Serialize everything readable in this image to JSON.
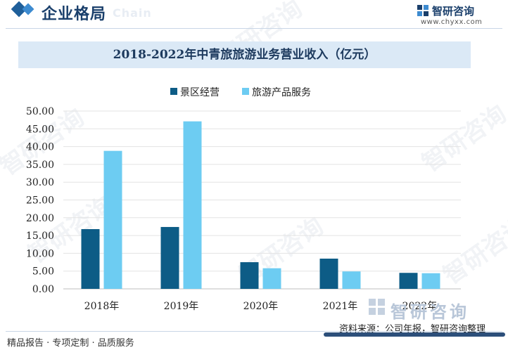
{
  "header": {
    "section_title": "企业格局",
    "ghost_text": "Chain",
    "brand_name": "智研咨询",
    "brand_url": "www.chyxx.com"
  },
  "chart_data": {
    "type": "bar",
    "title": "2018-2022年中青旅旅游业务营业收入（亿元）",
    "categories": [
      "2018年",
      "2019年",
      "2020年",
      "2021年",
      "2022年"
    ],
    "series": [
      {
        "name": "景区经营",
        "color": "#0d5c86",
        "values": [
          16.8,
          17.4,
          7.5,
          8.5,
          4.5
        ]
      },
      {
        "name": "旅游产品服务",
        "color": "#6dccf2",
        "values": [
          38.8,
          47.1,
          5.8,
          4.9,
          4.4
        ]
      }
    ],
    "yticks": [
      "0.00",
      "5.00",
      "10.00",
      "15.00",
      "20.00",
      "25.00",
      "30.00",
      "35.00",
      "40.00",
      "45.00",
      "50.00"
    ],
    "ylim": [
      0,
      50
    ],
    "grid": true,
    "legend_position": "top"
  },
  "watermark": {
    "text": "智研咨询"
  },
  "bottom_brand": "智研咨询",
  "source": "资料来源：公司年报，智研咨询整理",
  "footer": {
    "tagline": "精品报告 · 专项定制 · 品质服务"
  }
}
